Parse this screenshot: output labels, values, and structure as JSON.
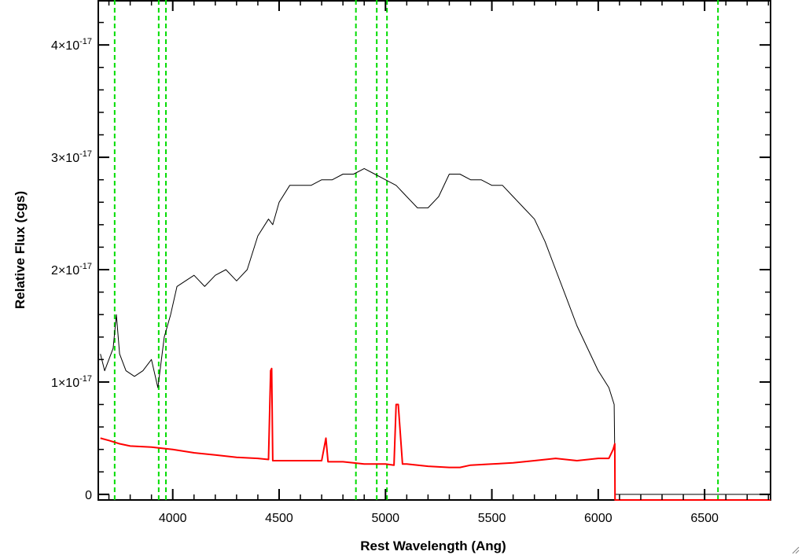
{
  "chart_data": {
    "type": "line",
    "title": "",
    "xlabel": "Rest Wavelength (Ang)",
    "ylabel": "Relative Flux (cgs)",
    "xlim": [
      3650,
      6810
    ],
    "ylim": [
      -0.05,
      4.4
    ],
    "y_scale_exponent": -17,
    "x_ticks": [
      4000,
      4500,
      5000,
      5500,
      6000,
      6500
    ],
    "y_ticks": [
      {
        "value": 0,
        "label": "0"
      },
      {
        "value": 1,
        "label": "1×10-17"
      },
      {
        "value": 2,
        "label": "2×10-17"
      },
      {
        "value": 3,
        "label": "3×10-17"
      },
      {
        "value": 4,
        "label": "4×10-17"
      }
    ],
    "grid": false,
    "legend": "none",
    "series": [
      {
        "color": "#000000",
        "x": [
          3660,
          3680,
          3700,
          3720,
          3735,
          3750,
          3780,
          3820,
          3860,
          3900,
          3930,
          3960,
          3990,
          4020,
          4060,
          4100,
          4150,
          4200,
          4250,
          4300,
          4350,
          4400,
          4450,
          4470,
          4500,
          4550,
          4600,
          4650,
          4700,
          4750,
          4800,
          4850,
          4900,
          4950,
          5000,
          5050,
          5100,
          5150,
          5200,
          5250,
          5300,
          5350,
          5400,
          5450,
          5500,
          5550,
          5600,
          5650,
          5700,
          5750,
          5800,
          5850,
          5900,
          5950,
          6000,
          6050,
          6075,
          6080,
          6810
        ],
        "y": [
          1.25,
          1.1,
          1.2,
          1.3,
          1.6,
          1.25,
          1.1,
          1.05,
          1.1,
          1.2,
          0.95,
          1.4,
          1.6,
          1.85,
          1.9,
          1.95,
          1.85,
          1.95,
          2.0,
          1.9,
          2.0,
          2.3,
          2.45,
          2.4,
          2.6,
          2.75,
          2.75,
          2.75,
          2.8,
          2.8,
          2.85,
          2.85,
          2.9,
          2.85,
          2.8,
          2.75,
          2.65,
          2.55,
          2.55,
          2.65,
          2.85,
          2.85,
          2.8,
          2.8,
          2.75,
          2.75,
          2.65,
          2.55,
          2.45,
          2.25,
          2.0,
          1.75,
          1.5,
          1.3,
          1.1,
          0.95,
          0.8,
          0.0,
          0.0
        ]
      },
      {
        "color": "#ff0000",
        "x": [
          3660,
          3700,
          3750,
          3800,
          3900,
          4000,
          4100,
          4200,
          4300,
          4400,
          4450,
          4460,
          4465,
          4470,
          4480,
          4500,
          4600,
          4700,
          4720,
          4730,
          4800,
          4900,
          5000,
          5040,
          5050,
          5060,
          5080,
          5100,
          5200,
          5300,
          5350,
          5400,
          5500,
          5600,
          5700,
          5800,
          5900,
          6000,
          6050,
          6070,
          6078,
          6079,
          6810
        ],
        "y": [
          0.5,
          0.48,
          0.45,
          0.43,
          0.42,
          0.4,
          0.37,
          0.35,
          0.33,
          0.32,
          0.31,
          1.1,
          1.12,
          0.3,
          0.3,
          0.3,
          0.3,
          0.3,
          0.5,
          0.29,
          0.29,
          0.27,
          0.27,
          0.26,
          0.8,
          0.8,
          0.27,
          0.27,
          0.25,
          0.24,
          0.24,
          0.26,
          0.27,
          0.28,
          0.3,
          0.32,
          0.3,
          0.32,
          0.32,
          0.4,
          0.45,
          -0.05,
          -0.05
        ]
      }
    ],
    "reference_lines_x": [
      3727,
      3934,
      3968,
      4861,
      4959,
      5007,
      6563
    ],
    "reference_line_color": "#00dd00"
  }
}
